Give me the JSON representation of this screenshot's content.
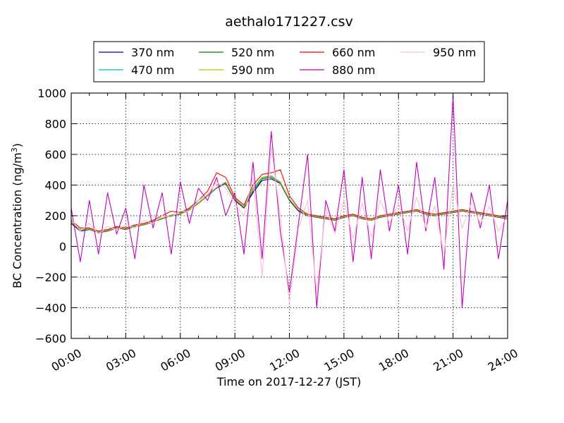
{
  "chart_data": {
    "type": "line",
    "title": "aethalo171227.csv",
    "xlabel": "Time on 2017-12-27 (JST)",
    "ylabel_main": "BC Concentration (ng/m",
    "ylabel_sup": "3",
    "ylabel_end": ")",
    "xlim_hours": [
      0,
      24
    ],
    "ylim": [
      -600,
      1000
    ],
    "x_ticks": [
      {
        "value": 0,
        "label": "00:00"
      },
      {
        "value": 3,
        "label": "03:00"
      },
      {
        "value": 6,
        "label": "06:00"
      },
      {
        "value": 9,
        "label": "09:00"
      },
      {
        "value": 12,
        "label": "12:00"
      },
      {
        "value": 15,
        "label": "15:00"
      },
      {
        "value": 18,
        "label": "18:00"
      },
      {
        "value": 21,
        "label": "21:00"
      },
      {
        "value": 24,
        "label": "24:00"
      }
    ],
    "y_ticks": [
      {
        "value": -600,
        "label": "−600"
      },
      {
        "value": -400,
        "label": "−400"
      },
      {
        "value": -200,
        "label": "−200"
      },
      {
        "value": 0,
        "label": "0"
      },
      {
        "value": 200,
        "label": "200"
      },
      {
        "value": 400,
        "label": "400"
      },
      {
        "value": 600,
        "label": "600"
      },
      {
        "value": 800,
        "label": "800"
      },
      {
        "value": 1000,
        "label": "1000"
      }
    ],
    "grid": true,
    "legend_placement": "top-center",
    "x_hours": [
      0,
      0.5,
      1,
      1.5,
      2,
      2.5,
      3,
      3.5,
      4,
      4.5,
      5,
      5.5,
      6,
      6.5,
      7,
      7.5,
      8,
      8.5,
      9,
      9.5,
      10,
      10.5,
      11,
      11.5,
      12,
      12.5,
      13,
      13.5,
      14,
      14.5,
      15,
      15.5,
      16,
      16.5,
      17,
      17.5,
      18,
      18.5,
      19,
      19.5,
      20,
      20.5,
      21,
      21.5,
      22,
      22.5,
      23,
      23.5,
      24
    ],
    "series": [
      {
        "name": "370 nm",
        "color": "#0000cc",
        "values": [
          150,
          100,
          110,
          90,
          100,
          120,
          110,
          130,
          140,
          160,
          180,
          200,
          210,
          240,
          280,
          330,
          380,
          410,
          300,
          250,
          350,
          430,
          440,
          410,
          300,
          230,
          200,
          190,
          180,
          170,
          190,
          200,
          180,
          170,
          190,
          200,
          210,
          220,
          230,
          210,
          200,
          210,
          220,
          230,
          220,
          210,
          200,
          190,
          180
        ]
      },
      {
        "name": "470 nm",
        "color": "#00bfa0",
        "values": [
          160,
          110,
          115,
          95,
          105,
          125,
          115,
          135,
          145,
          165,
          185,
          205,
          215,
          245,
          285,
          335,
          385,
          420,
          310,
          260,
          380,
          450,
          460,
          420,
          310,
          240,
          205,
          195,
          185,
          175,
          195,
          205,
          185,
          175,
          195,
          205,
          215,
          225,
          235,
          215,
          205,
          215,
          225,
          235,
          225,
          215,
          205,
          195,
          185
        ]
      },
      {
        "name": "520 nm",
        "color": "#008000",
        "values": [
          155,
          105,
          112,
          92,
          102,
          122,
          112,
          132,
          142,
          162,
          182,
          202,
          212,
          242,
          282,
          332,
          382,
          415,
          305,
          255,
          360,
          440,
          450,
          415,
          305,
          235,
          202,
          192,
          182,
          172,
          192,
          202,
          182,
          172,
          192,
          202,
          212,
          222,
          232,
          212,
          202,
          212,
          222,
          232,
          222,
          212,
          202,
          192,
          182
        ]
      },
      {
        "name": "590 nm",
        "color": "#bfbf00",
        "values": [
          158,
          108,
          113,
          93,
          103,
          123,
          113,
          133,
          143,
          163,
          183,
          203,
          213,
          243,
          283,
          333,
          383,
          418,
          308,
          258,
          370,
          445,
          455,
          418,
          308,
          238,
          203,
          193,
          183,
          173,
          193,
          203,
          183,
          173,
          193,
          203,
          213,
          223,
          233,
          213,
          203,
          213,
          223,
          233,
          223,
          213,
          203,
          193,
          183
        ]
      },
      {
        "name": "660 nm",
        "color": "#ff0000",
        "values": [
          170,
          120,
          120,
          100,
          110,
          130,
          120,
          140,
          150,
          170,
          200,
          230,
          220,
          250,
          300,
          360,
          480,
          450,
          320,
          270,
          400,
          470,
          480,
          500,
          330,
          250,
          210,
          200,
          190,
          180,
          200,
          210,
          190,
          180,
          200,
          210,
          220,
          230,
          240,
          220,
          210,
          220,
          230,
          240,
          230,
          220,
          210,
          200,
          190
        ]
      },
      {
        "name": "880 nm",
        "color": "#bf00bf",
        "values": [
          250,
          -100,
          300,
          -50,
          350,
          80,
          250,
          -80,
          400,
          120,
          350,
          -50,
          420,
          150,
          380,
          300,
          450,
          200,
          350,
          -50,
          550,
          -80,
          750,
          100,
          -300,
          150,
          600,
          -400,
          300,
          100,
          500,
          -100,
          450,
          -80,
          500,
          100,
          400,
          -50,
          550,
          100,
          450,
          -150,
          980,
          -400,
          350,
          120,
          400,
          -80,
          300
        ]
      },
      {
        "name": "950 nm",
        "color": "#ffc0cb",
        "values": [
          180,
          100,
          150,
          80,
          130,
          110,
          140,
          120,
          170,
          150,
          200,
          190,
          230,
          230,
          300,
          340,
          420,
          380,
          280,
          200,
          450,
          -200,
          650,
          200,
          -370,
          120,
          300,
          -300,
          250,
          80,
          300,
          50,
          280,
          60,
          300,
          150,
          280,
          100,
          320,
          120,
          260,
          -50,
          400,
          120,
          280,
          150,
          260,
          100,
          200
        ]
      }
    ]
  }
}
